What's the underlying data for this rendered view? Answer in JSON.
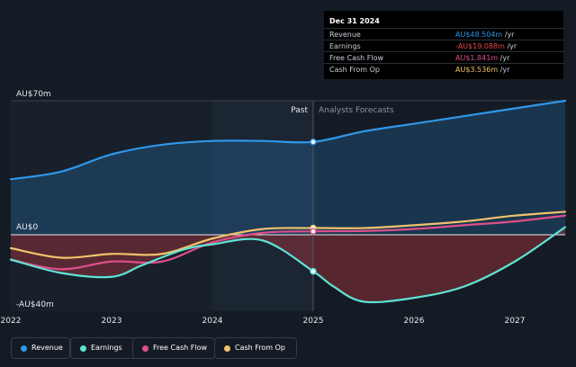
{
  "colors": {
    "revenue": "#2f97e8",
    "earnings": "#5ee3d6",
    "free_cash_flow": "#de4f8a",
    "cash_from_op": "#f0c36b",
    "background": "#151b24",
    "past_shade": "#1c2532"
  },
  "tooltip": {
    "date": "Dec 31 2024",
    "rows": [
      {
        "label": "Revenue",
        "value": "AU$48.504m",
        "unit": " /yr",
        "color": "#2f97e8"
      },
      {
        "label": "Earnings",
        "value": "-AU$19.088m",
        "unit": " /yr",
        "color": "#e8484a"
      },
      {
        "label": "Free Cash Flow",
        "value": "AU$1.841m",
        "unit": " /yr",
        "color": "#de4f8a"
      },
      {
        "label": "Cash From Op",
        "value": "AU$3.536m",
        "unit": " /yr",
        "color": "#f0c36b"
      }
    ]
  },
  "legend": [
    {
      "label": "Revenue",
      "color": "#2f97e8"
    },
    {
      "label": "Earnings",
      "color": "#5ee3d6"
    },
    {
      "label": "Free Cash Flow",
      "color": "#de4f8a"
    },
    {
      "label": "Cash From Op",
      "color": "#f0c36b"
    }
  ],
  "chart_data": {
    "type": "line",
    "x_ticks": [
      "2022",
      "2023",
      "2024",
      "2025",
      "2026",
      "2027"
    ],
    "y_tick_labels": [
      "AU$70m",
      "AU$0",
      "-AU$40m"
    ],
    "ylim": [
      -40,
      70
    ],
    "xlim": [
      2022.0,
      2027.5
    ],
    "divider_x": 2025.0,
    "past_label": "Past",
    "forecast_label": "Analysts Forecasts",
    "series": [
      {
        "name": "Revenue",
        "key": "revenue",
        "points": [
          [
            2022.0,
            29
          ],
          [
            2022.5,
            33
          ],
          [
            2023.0,
            42
          ],
          [
            2023.5,
            47
          ],
          [
            2024.0,
            49
          ],
          [
            2024.5,
            49
          ],
          [
            2025.0,
            48.5
          ],
          [
            2025.5,
            54
          ],
          [
            2026.0,
            58
          ],
          [
            2026.5,
            62
          ],
          [
            2027.0,
            66
          ],
          [
            2027.5,
            70
          ]
        ]
      },
      {
        "name": "Earnings",
        "key": "earnings",
        "points": [
          [
            2022.0,
            -13
          ],
          [
            2022.5,
            -20
          ],
          [
            2023.0,
            -22
          ],
          [
            2023.3,
            -16
          ],
          [
            2023.7,
            -8
          ],
          [
            2024.0,
            -5
          ],
          [
            2024.5,
            -3
          ],
          [
            2025.0,
            -19.1
          ],
          [
            2025.2,
            -27
          ],
          [
            2025.5,
            -35
          ],
          [
            2026.0,
            -33
          ],
          [
            2026.5,
            -27
          ],
          [
            2027.0,
            -14
          ],
          [
            2027.5,
            4
          ]
        ]
      },
      {
        "name": "Free Cash Flow",
        "key": "free_cash_flow",
        "points": [
          [
            2022.0,
            -13
          ],
          [
            2022.5,
            -18
          ],
          [
            2023.0,
            -14
          ],
          [
            2023.5,
            -14
          ],
          [
            2024.0,
            -4
          ],
          [
            2024.5,
            1
          ],
          [
            2025.0,
            1.8
          ],
          [
            2025.5,
            2
          ],
          [
            2026.0,
            3
          ],
          [
            2026.5,
            5
          ],
          [
            2027.0,
            7
          ],
          [
            2027.5,
            10
          ]
        ]
      },
      {
        "name": "Cash From Op",
        "key": "cash_from_op",
        "points": [
          [
            2022.0,
            -7
          ],
          [
            2022.5,
            -12
          ],
          [
            2023.0,
            -10
          ],
          [
            2023.5,
            -10
          ],
          [
            2024.0,
            -2
          ],
          [
            2024.5,
            3
          ],
          [
            2025.0,
            3.5
          ],
          [
            2025.5,
            3.5
          ],
          [
            2026.0,
            5
          ],
          [
            2026.5,
            7
          ],
          [
            2027.0,
            10
          ],
          [
            2027.5,
            12
          ]
        ]
      }
    ]
  }
}
